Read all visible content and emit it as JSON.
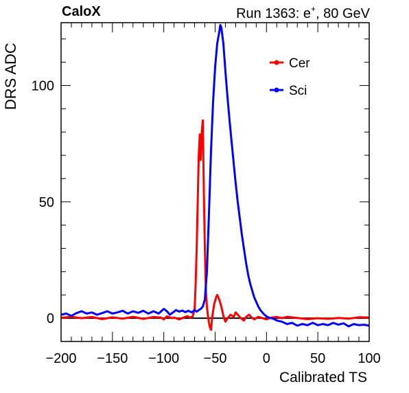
{
  "header": {
    "experiment": "CaloX",
    "run_info_prefix": "Run 1363: e",
    "run_info_sup": "+",
    "run_info_suffix": ", 80 GeV"
  },
  "chart_data": {
    "type": "line",
    "title": "",
    "xlabel": "Calibrated TS",
    "ylabel": "DRS ADC",
    "xlim": [
      -200,
      100
    ],
    "ylim": [
      -10,
      127
    ],
    "xticks": [
      -200,
      -150,
      -100,
      -50,
      0,
      50,
      100
    ],
    "xtick_labels": [
      "−200",
      "−150",
      "−100",
      "−50",
      "0",
      "50",
      "100"
    ],
    "yticks": [
      0,
      50,
      100
    ],
    "ytick_labels": [
      "0",
      "50",
      "100"
    ],
    "legend_position": "top-right",
    "zero_line": true,
    "series": [
      {
        "name": "Cer",
        "color": "#ff0000",
        "points": [
          [
            -200,
            0.2
          ],
          [
            -190,
            0.6
          ],
          [
            -180,
            0.0
          ],
          [
            -170,
            0.5
          ],
          [
            -160,
            -0.4
          ],
          [
            -150,
            0.4
          ],
          [
            -140,
            -0.2
          ],
          [
            -130,
            0.6
          ],
          [
            -120,
            -0.3
          ],
          [
            -110,
            0.5
          ],
          [
            -103,
            0.3
          ],
          [
            -100,
            -0.5
          ],
          [
            -97,
            0.8
          ],
          [
            -95,
            0.5
          ],
          [
            -92,
            0.0
          ],
          [
            -90,
            0.3
          ],
          [
            -85,
            -0.5
          ],
          [
            -80,
            0.4
          ],
          [
            -77,
            0.9
          ],
          [
            -75,
            0.3
          ],
          [
            -72,
            0.6
          ],
          [
            -70,
            4.0
          ],
          [
            -69,
            15
          ],
          [
            -68,
            30
          ],
          [
            -67,
            50
          ],
          [
            -66,
            70
          ],
          [
            -65,
            79
          ],
          [
            -64,
            68
          ],
          [
            -63,
            80
          ],
          [
            -62,
            85
          ],
          [
            -61,
            55
          ],
          [
            -60,
            30
          ],
          [
            -59,
            12
          ],
          [
            -58,
            5
          ],
          [
            -57,
            1
          ],
          [
            -56,
            -2
          ],
          [
            -55,
            -4
          ],
          [
            -54,
            -5
          ],
          [
            -53,
            0
          ],
          [
            -51,
            6
          ],
          [
            -49,
            9
          ],
          [
            -48,
            10
          ],
          [
            -46,
            8
          ],
          [
            -44,
            5
          ],
          [
            -42,
            1
          ],
          [
            -40,
            -1.5
          ],
          [
            -38,
            0
          ],
          [
            -35,
            1.5
          ],
          [
            -32,
            0.5
          ],
          [
            -30,
            2.5
          ],
          [
            -28,
            1.5
          ],
          [
            -25,
            0
          ],
          [
            -22,
            -1
          ],
          [
            -20,
            0.5
          ],
          [
            -17,
            1.5
          ],
          [
            -15,
            0.5
          ],
          [
            -12,
            -0.5
          ],
          [
            -8,
            0.6
          ],
          [
            -5,
            0.2
          ],
          [
            0,
            -0.5
          ],
          [
            5,
            0.3
          ],
          [
            10,
            0.5
          ],
          [
            15,
            0.0
          ],
          [
            20,
            0.6
          ],
          [
            30,
            0.1
          ],
          [
            40,
            -0.4
          ],
          [
            50,
            0.0
          ],
          [
            60,
            -0.3
          ],
          [
            70,
            0.1
          ],
          [
            80,
            -0.2
          ],
          [
            90,
            0.4
          ],
          [
            100,
            0.3
          ]
        ]
      },
      {
        "name": "Sci",
        "color": "#0000ff",
        "points": [
          [
            -200,
            1.5
          ],
          [
            -195,
            2.0
          ],
          [
            -190,
            1.0
          ],
          [
            -185,
            2.2
          ],
          [
            -180,
            3.0
          ],
          [
            -175,
            2.0
          ],
          [
            -170,
            2.5
          ],
          [
            -165,
            1.5
          ],
          [
            -160,
            2.2
          ],
          [
            -155,
            3.0
          ],
          [
            -150,
            2.0
          ],
          [
            -145,
            2.5
          ],
          [
            -140,
            3.2
          ],
          [
            -135,
            2.0
          ],
          [
            -130,
            3.0
          ],
          [
            -125,
            2.3
          ],
          [
            -120,
            3.2
          ],
          [
            -115,
            2.0
          ],
          [
            -110,
            3.0
          ],
          [
            -105,
            2.0
          ],
          [
            -100,
            4.0
          ],
          [
            -97,
            3.0
          ],
          [
            -94,
            1.5
          ],
          [
            -91,
            2.5
          ],
          [
            -88,
            3.5
          ],
          [
            -85,
            2.8
          ],
          [
            -82,
            3.3
          ],
          [
            -79,
            2.6
          ],
          [
            -76,
            3.2
          ],
          [
            -73,
            2.5
          ],
          [
            -70,
            3.5
          ],
          [
            -68,
            2.8
          ],
          [
            -66,
            3.5
          ],
          [
            -64,
            4.0
          ],
          [
            -62,
            5.0
          ],
          [
            -60,
            8.0
          ],
          [
            -58,
            20
          ],
          [
            -56,
            45
          ],
          [
            -54,
            72
          ],
          [
            -52,
            93
          ],
          [
            -50,
            108
          ],
          [
            -48,
            118
          ],
          [
            -46,
            123
          ],
          [
            -45,
            126
          ],
          [
            -44,
            125
          ],
          [
            -42,
            118
          ],
          [
            -40,
            106
          ],
          [
            -38,
            95
          ],
          [
            -36,
            85
          ],
          [
            -34,
            76
          ],
          [
            -32,
            67
          ],
          [
            -30,
            58
          ],
          [
            -28,
            50
          ],
          [
            -26,
            43
          ],
          [
            -24,
            36
          ],
          [
            -22,
            30
          ],
          [
            -20,
            24
          ],
          [
            -18,
            19
          ],
          [
            -16,
            15
          ],
          [
            -14,
            12
          ],
          [
            -12,
            9
          ],
          [
            -10,
            7
          ],
          [
            -8,
            5
          ],
          [
            -6,
            3.5
          ],
          [
            -4,
            2.5
          ],
          [
            -2,
            1.5
          ],
          [
            0,
            0.8
          ],
          [
            2,
            0.3
          ],
          [
            5,
            0.0
          ],
          [
            8,
            -0.5
          ],
          [
            10,
            -1.0
          ],
          [
            15,
            -1.5
          ],
          [
            20,
            -2.5
          ],
          [
            25,
            -2.0
          ],
          [
            30,
            -3.2
          ],
          [
            35,
            -2.5
          ],
          [
            40,
            -3.0
          ],
          [
            45,
            -2.0
          ],
          [
            50,
            -3.0
          ],
          [
            55,
            -2.5
          ],
          [
            60,
            -3.0
          ],
          [
            65,
            -2.0
          ],
          [
            70,
            -2.8
          ],
          [
            75,
            -2.2
          ],
          [
            80,
            -3.5
          ],
          [
            85,
            -2.5
          ],
          [
            90,
            -3.0
          ],
          [
            95,
            -2.8
          ],
          [
            100,
            -3.2
          ]
        ]
      }
    ]
  }
}
